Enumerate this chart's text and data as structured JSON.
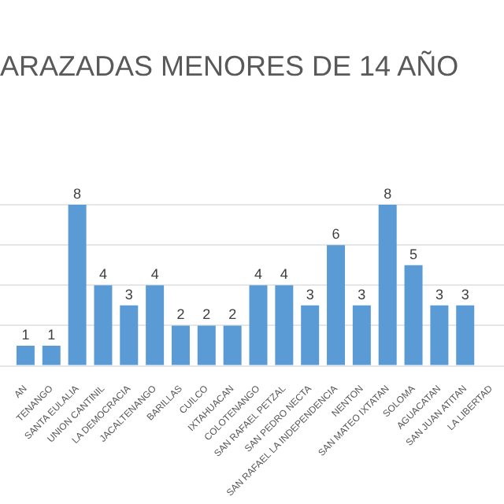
{
  "chart_data": {
    "type": "bar",
    "title": "ARAZADAS MENORES DE 14 AÑO",
    "categories": [
      "AN",
      "TENANGO",
      "SANTA EULALIA",
      "UNION CANTINIL",
      "LA DEMOCRACIA",
      "JACALTENANGO",
      "BARILLAS",
      "CUILCO",
      "IXTAHUACAN",
      "COLOTENANGO",
      "SAN RAFAEL PETZAL",
      "SAN PEDRO NECTA",
      "SAN RAFAEL LA INDEPENDENCIA",
      "NENTON",
      "SAN MATEO IXTATAN",
      "SOLOMA",
      "AGUACATAN",
      "SAN JUAN ATITAN",
      "LA LIBERTAD"
    ],
    "values": [
      1,
      1,
      8,
      4,
      3,
      4,
      2,
      2,
      2,
      4,
      4,
      3,
      6,
      3,
      8,
      5,
      3,
      3,
      null
    ],
    "color": "#5b9bd5",
    "data_labels": true,
    "grid": "y",
    "tick_labels": "x",
    "legend": false
  }
}
